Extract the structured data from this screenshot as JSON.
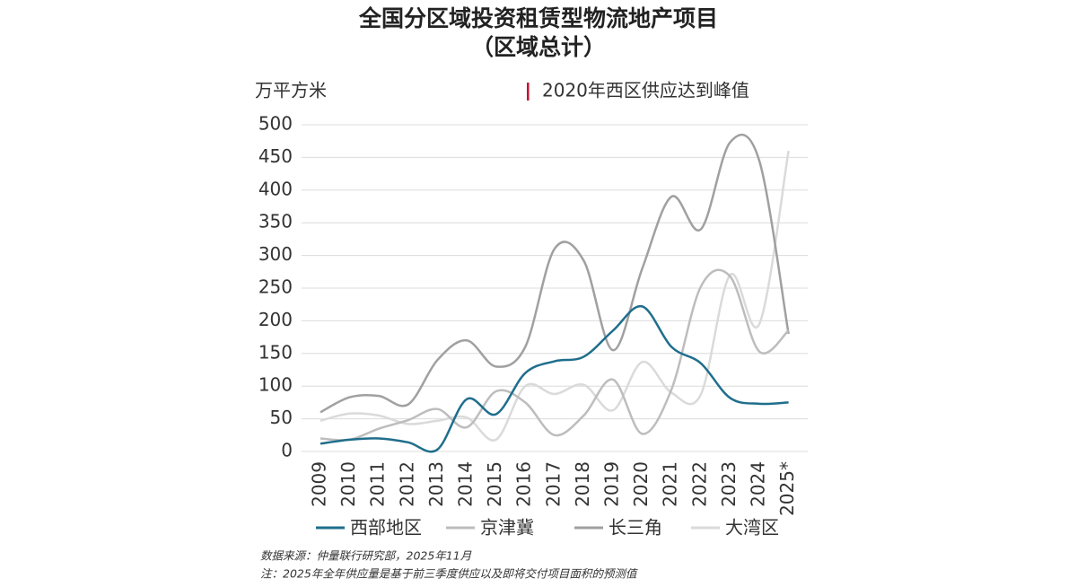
{
  "chart_data": {
    "type": "line",
    "title": "全国分区域投资租赁型物流地产项目",
    "subtitle": "（区域总计）",
    "y_label": "万平方米",
    "annotation": "2020年西区供应达到峰值",
    "categories": [
      "2009",
      "2010",
      "2011",
      "2012",
      "2013",
      "2014",
      "2015",
      "2016",
      "2017",
      "2018",
      "2019",
      "2020",
      "2021",
      "2022",
      "2023",
      "2024",
      "2025*"
    ],
    "series": [
      {
        "name": "西部地区",
        "color": "#1f6e8c",
        "values": [
          12,
          18,
          20,
          14,
          3,
          80,
          57,
          120,
          138,
          145,
          185,
          222,
          160,
          135,
          82,
          73,
          75
        ]
      },
      {
        "name": "京津冀",
        "color": "#bdbdbd",
        "values": [
          20,
          18,
          35,
          48,
          65,
          37,
          92,
          75,
          25,
          55,
          110,
          27,
          95,
          252,
          268,
          153,
          185
        ]
      },
      {
        "name": "长三角",
        "color": "#a0a0a0",
        "values": [
          60,
          83,
          85,
          72,
          140,
          170,
          130,
          160,
          310,
          292,
          155,
          280,
          390,
          340,
          473,
          445,
          180
        ]
      },
      {
        "name": "大湾区",
        "color": "#dadada",
        "values": [
          47,
          58,
          55,
          42,
          47,
          52,
          18,
          100,
          88,
          102,
          63,
          137,
          90,
          87,
          270,
          195,
          460
        ]
      }
    ],
    "ylim": [
      0,
      500
    ],
    "yticks": [
      0,
      50,
      100,
      150,
      200,
      250,
      300,
      350,
      400,
      450,
      500
    ],
    "grid": true,
    "source": "数据来源：仲量联行研究部，2025年11月",
    "note": "注：2025年全年供应量是基于前三季度供应以及即将交付项目面积的预测值"
  }
}
